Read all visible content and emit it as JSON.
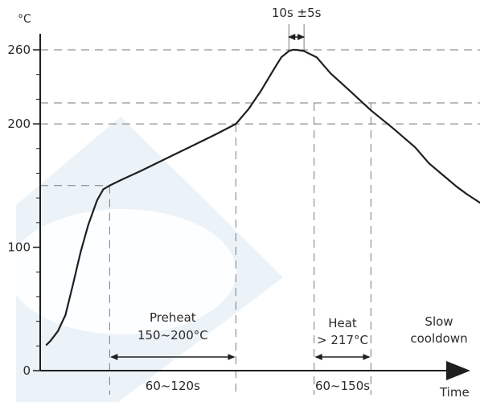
{
  "chart_data": {
    "type": "line",
    "title": "",
    "xlabel": "Time",
    "ylabel": "°C",
    "ylim": [
      0,
      270
    ],
    "yticks": [
      {
        "value": 0,
        "label": "0"
      },
      {
        "value": 100,
        "label": "100"
      },
      {
        "value": 200,
        "label": "200"
      },
      {
        "value": 260,
        "label": "260"
      }
    ],
    "y_minor_step": 20,
    "xlim": [
      0,
      350
    ],
    "grid": false,
    "reference_temperatures": [
      150,
      200,
      217,
      260
    ],
    "series": [
      {
        "x": [
          5,
          8,
          14,
          20,
          26,
          32,
          38,
          45,
          50,
          55,
          65,
          80,
          100,
          120,
          140,
          155,
          165,
          175,
          185,
          191,
          197,
          200,
          203,
          209,
          219,
          230,
          245,
          262,
          280,
          297,
          308,
          322,
          330,
          338,
          350
        ],
        "y": [
          21,
          24,
          32,
          45,
          70,
          96,
          118,
          138,
          147,
          150,
          155,
          162,
          172,
          182,
          192,
          200,
          212,
          227,
          244,
          254,
          259,
          260,
          260,
          259,
          254,
          241,
          227,
          211,
          196,
          181,
          168,
          156,
          149,
          143,
          135
        ]
      }
    ],
    "vertical_markers_x": [
      55,
      155,
      217,
      262
    ],
    "annotations": {
      "peak_width": "10s ±5s",
      "zones": [
        {
          "name_lines": [
            "Preheat",
            "150~200°C"
          ],
          "duration": "60~120s"
        },
        {
          "name_lines": [
            "Heat",
            "> 217°C"
          ],
          "duration": "60~150s"
        },
        {
          "name_lines": [
            "Slow",
            "cooldown"
          ]
        }
      ]
    },
    "colors": {
      "curve": "#1f1f1f",
      "guides": "#7a7a7a",
      "watermark": "#dbe7f3"
    }
  }
}
